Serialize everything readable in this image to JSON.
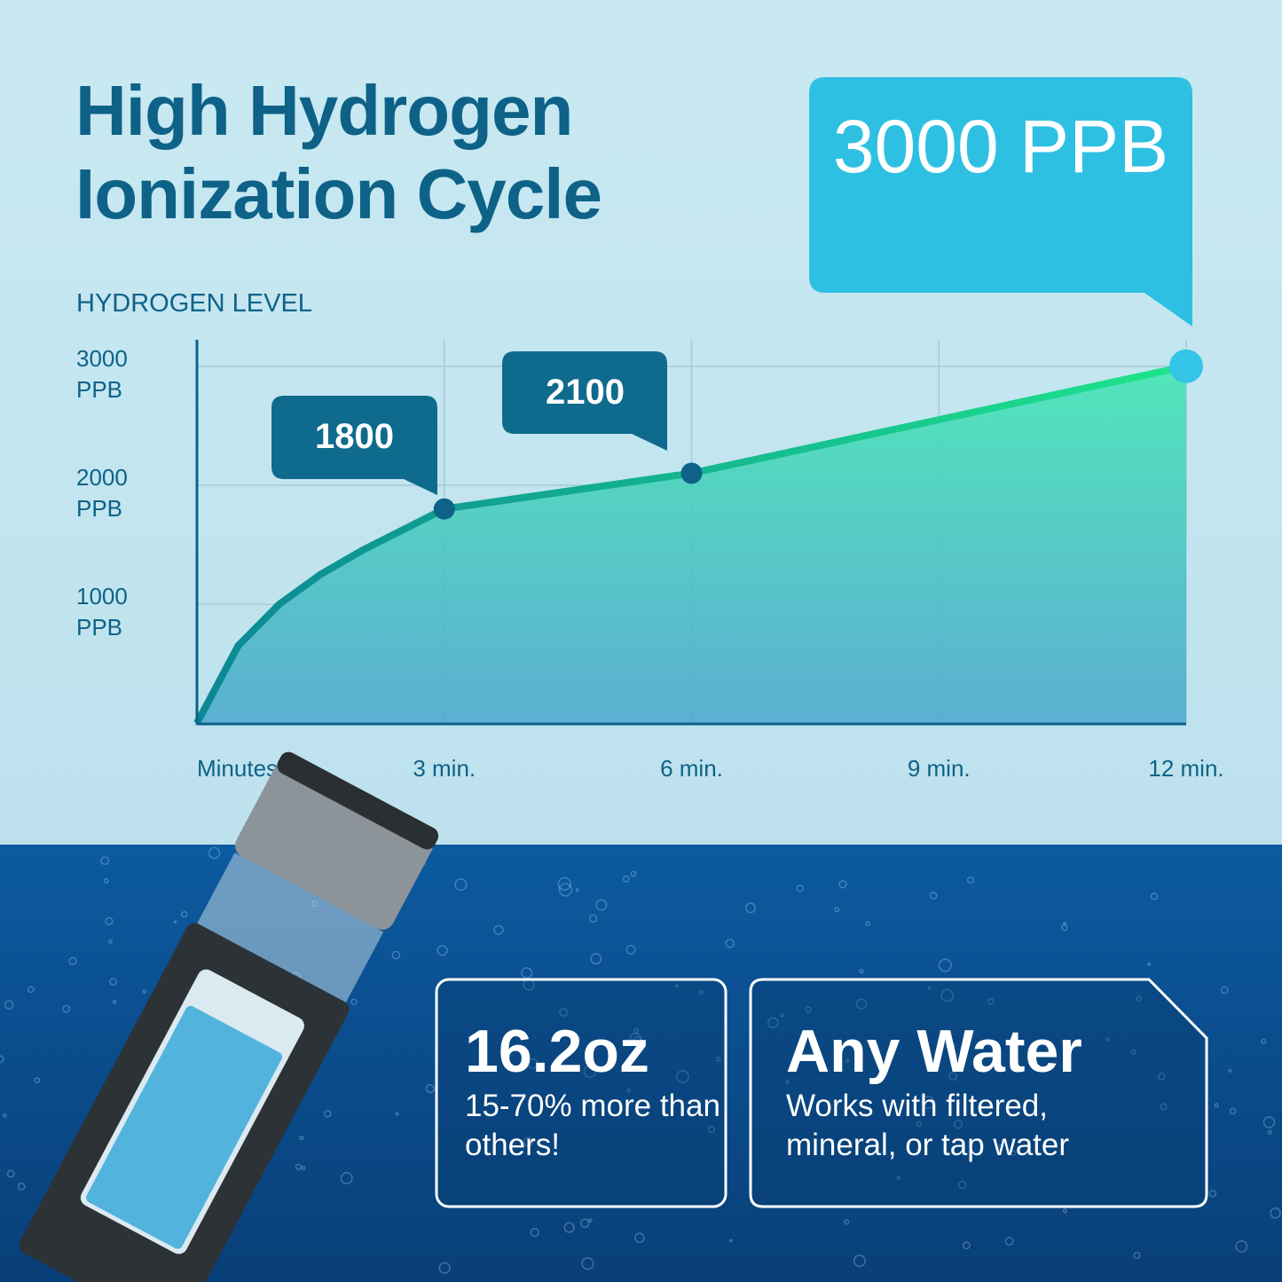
{
  "title": "High Hydrogen Ionization Cycle",
  "chart_data": {
    "type": "area",
    "y_label": "HYDROGEN LEVEL",
    "x": [
      0,
      0.5,
      1,
      1.5,
      2,
      3,
      6,
      9,
      12
    ],
    "values": [
      0,
      650,
      1000,
      1250,
      1450,
      1800,
      2100,
      2550,
      3000
    ],
    "value_labels": [
      null,
      null,
      null,
      null,
      null,
      "1800",
      "2100",
      null,
      "3000 PPB"
    ],
    "xlim": [
      0,
      12
    ],
    "xticks": [
      {
        "value": 0,
        "label": "Minutes"
      },
      {
        "value": 3,
        "label": "3 min."
      },
      {
        "value": 6,
        "label": "6 min."
      },
      {
        "value": 9,
        "label": "9 min."
      },
      {
        "value": 12,
        "label": "12 min."
      }
    ],
    "ylim": [
      0,
      3200
    ],
    "yticks": [
      {
        "value": 1000,
        "label": "1000 PPB"
      },
      {
        "value": 2000,
        "label": "2000 PPB"
      },
      {
        "value": 3000,
        "label": "3000 PPB"
      }
    ],
    "grid": true,
    "color": "#12c99a"
  },
  "features": [
    {
      "title": "16.2oz",
      "text": "15-70% more than others!"
    },
    {
      "title": "Any Water",
      "text": "Works with filtered, mineral, or tap water"
    }
  ]
}
